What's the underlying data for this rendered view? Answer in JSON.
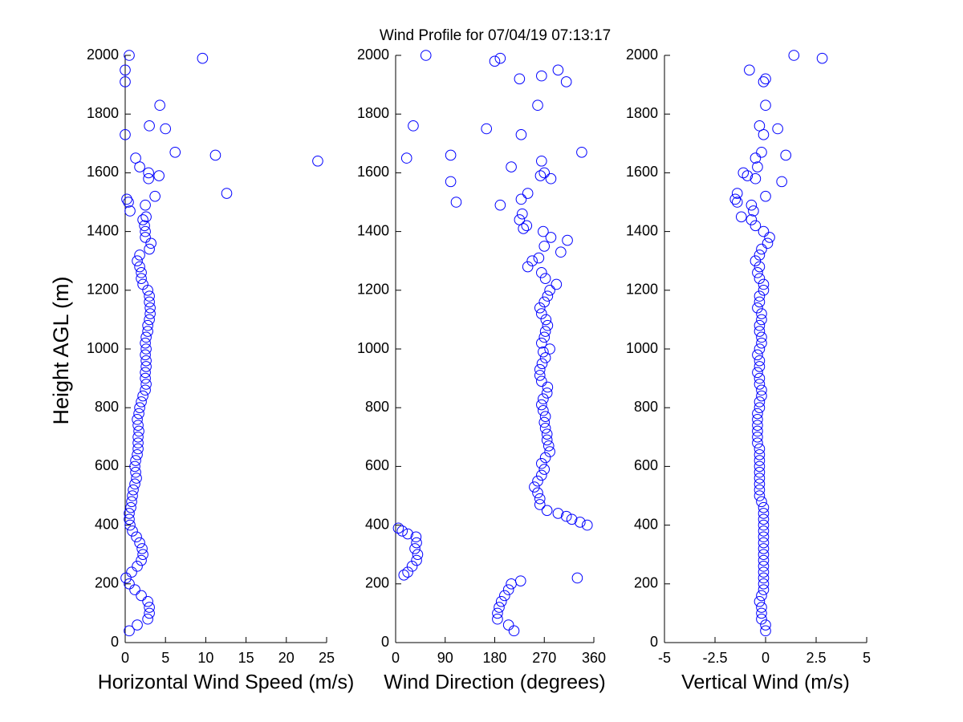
{
  "chart_data": [
    {
      "type": "scatter",
      "title": "Wind Profile for  07/04/19 07:13:17",
      "xlabel": "Horizontal Wind Speed (m/s)",
      "ylabel": "Height AGL (m)",
      "color": "#0000ff",
      "xlim": [
        0,
        25
      ],
      "xticks": [
        0,
        5,
        10,
        15,
        20,
        25
      ],
      "ylim": [
        0,
        2000
      ],
      "yticks": [
        0,
        200,
        400,
        600,
        800,
        1000,
        1200,
        1400,
        1600,
        1800,
        2000
      ],
      "x": [
        0.5,
        1.5,
        2.8,
        3.0,
        3.0,
        2.8,
        2.0,
        1.2,
        0.5,
        0.1,
        0.8,
        1.5,
        2.0,
        2.2,
        2.1,
        1.8,
        1.4,
        0.9,
        0.6,
        0.5,
        0.5,
        0.7,
        0.8,
        0.9,
        1.0,
        1.2,
        1.4,
        1.3,
        1.2,
        1.3,
        1.5,
        1.6,
        1.6,
        1.6,
        1.7,
        1.6,
        1.5,
        1.7,
        1.8,
        2.0,
        2.2,
        2.5,
        2.6,
        2.5,
        2.5,
        2.6,
        2.6,
        2.5,
        2.6,
        2.5,
        2.6,
        2.8,
        2.8,
        3.0,
        3.1,
        3.1,
        3.0,
        3.0,
        2.8,
        2.2,
        2.0,
        2.0,
        1.8,
        1.5,
        1.8,
        3.0,
        3.2,
        2.5,
        2.5,
        2.4,
        2.2,
        2.6,
        0.6,
        2.5,
        0.4,
        0.2,
        3.7,
        12.6,
        2.9,
        4.2,
        2.9,
        1.8,
        23.9,
        1.3,
        11.2,
        6.2,
        0,
        5.0,
        3.0,
        4.3,
        0,
        0,
        9.6,
        0.5
      ],
      "values": [
        40,
        60,
        80,
        100,
        120,
        140,
        160,
        180,
        200,
        220,
        240,
        260,
        280,
        300,
        320,
        340,
        360,
        380,
        400,
        420,
        440,
        460,
        480,
        500,
        520,
        540,
        560,
        580,
        600,
        620,
        640,
        660,
        680,
        700,
        720,
        740,
        760,
        780,
        800,
        820,
        840,
        860,
        880,
        900,
        920,
        940,
        960,
        980,
        1000,
        1020,
        1040,
        1060,
        1080,
        1100,
        1120,
        1140,
        1160,
        1180,
        1200,
        1220,
        1240,
        1260,
        1280,
        1300,
        1320,
        1340,
        1360,
        1380,
        1400,
        1420,
        1440,
        1450,
        1470,
        1490,
        1500,
        1510,
        1520,
        1530,
        1580,
        1590,
        1600,
        1620,
        1640,
        1650,
        1660,
        1670,
        1730,
        1750,
        1760,
        1830,
        1910,
        1950,
        1990,
        2000
      ]
    },
    {
      "type": "scatter",
      "xlabel": "Wind Direction (degrees)",
      "color": "#0000ff",
      "xlim": [
        0,
        360
      ],
      "xticks": [
        0,
        90,
        180,
        270,
        360
      ],
      "ylim": [
        0,
        2000
      ],
      "yticks": [
        0,
        200,
        400,
        600,
        800,
        1000,
        1200,
        1400,
        1600,
        1800,
        2000
      ],
      "x": [
        215,
        205,
        185,
        185,
        188,
        192,
        198,
        205,
        210,
        227,
        330,
        15,
        22,
        30,
        38,
        40,
        35,
        38,
        37,
        22,
        12,
        5,
        348,
        335,
        320,
        310,
        295,
        275,
        262,
        262,
        258,
        252,
        258,
        265,
        270,
        265,
        272,
        280,
        278,
        275,
        275,
        272,
        270,
        272,
        268,
        265,
        268,
        275,
        276,
        265,
        262,
        262,
        266,
        272,
        268,
        280,
        265,
        270,
        272,
        276,
        273,
        265,
        262,
        270,
        276,
        280,
        292,
        272,
        265,
        240,
        248,
        260,
        300,
        270,
        312,
        282,
        268,
        232,
        238,
        225,
        230,
        190,
        110,
        228,
        240,
        100,
        282,
        263,
        270,
        210,
        265,
        20,
        100,
        338,
        228,
        165,
        32,
        258,
        310,
        225,
        265,
        295,
        180,
        190,
        55
      ],
      "values": [
        40,
        60,
        80,
        100,
        120,
        140,
        160,
        180,
        200,
        210,
        220,
        230,
        240,
        260,
        280,
        300,
        320,
        340,
        360,
        370,
        380,
        390,
        400,
        410,
        420,
        430,
        440,
        450,
        470,
        490,
        510,
        530,
        550,
        570,
        590,
        610,
        630,
        650,
        670,
        690,
        710,
        730,
        750,
        770,
        790,
        810,
        830,
        850,
        870,
        890,
        910,
        930,
        950,
        970,
        990,
        1000,
        1020,
        1040,
        1060,
        1080,
        1100,
        1120,
        1140,
        1160,
        1180,
        1200,
        1220,
        1240,
        1260,
        1280,
        1300,
        1310,
        1330,
        1350,
        1370,
        1380,
        1400,
        1410,
        1420,
        1440,
        1460,
        1490,
        1500,
        1510,
        1530,
        1570,
        1580,
        1590,
        1600,
        1620,
        1640,
        1650,
        1660,
        1670,
        1730,
        1750,
        1760,
        1830,
        1910,
        1920,
        1930,
        1950,
        1980,
        1990,
        2000
      ]
    },
    {
      "type": "scatter",
      "xlabel": "Vertical Wind (m/s)",
      "color": "#0000ff",
      "xlim": [
        -5,
        5
      ],
      "xticks": [
        -5,
        -2.5,
        0,
        2.5,
        5
      ],
      "ylim": [
        0,
        2000
      ],
      "yticks": [
        0,
        200,
        400,
        600,
        800,
        1000,
        1200,
        1400,
        1600,
        1800,
        2000
      ],
      "x": [
        0.0,
        0.0,
        -0.2,
        -0.2,
        -0.2,
        -0.3,
        -0.2,
        -0.1,
        -0.1,
        -0.1,
        -0.1,
        -0.1,
        -0.1,
        -0.1,
        -0.1,
        -0.1,
        -0.1,
        -0.1,
        -0.1,
        -0.1,
        -0.1,
        -0.1,
        -0.2,
        -0.3,
        -0.3,
        -0.3,
        -0.3,
        -0.3,
        -0.3,
        -0.3,
        -0.3,
        -0.3,
        -0.4,
        -0.4,
        -0.4,
        -0.4,
        -0.4,
        -0.4,
        -0.3,
        -0.3,
        -0.2,
        -0.2,
        -0.3,
        -0.3,
        -0.4,
        -0.3,
        -0.3,
        -0.4,
        -0.3,
        -0.2,
        -0.2,
        -0.3,
        -0.3,
        -0.2,
        -0.2,
        -0.4,
        -0.3,
        -0.3,
        -0.1,
        -0.1,
        -0.3,
        -0.4,
        -0.3,
        -0.5,
        -0.3,
        -0.2,
        0.1,
        0.2,
        -0.1,
        -0.5,
        -0.7,
        -1.2,
        -0.6,
        -0.7,
        -1.4,
        -1.5,
        0,
        -1.4,
        0.8,
        -0.5,
        -0.9,
        -1.1,
        -0.4,
        -0.5,
        1.0,
        -0.2,
        -0.1,
        0.6,
        -0.3,
        0,
        -0.1,
        0,
        -0.8,
        2.8,
        1.4
      ],
      "values": [
        40,
        60,
        80,
        100,
        120,
        140,
        160,
        180,
        200,
        220,
        240,
        260,
        280,
        300,
        320,
        340,
        360,
        380,
        400,
        420,
        440,
        460,
        480,
        500,
        520,
        540,
        560,
        580,
        600,
        620,
        640,
        660,
        680,
        700,
        720,
        740,
        760,
        780,
        800,
        820,
        840,
        860,
        880,
        900,
        920,
        940,
        960,
        980,
        1000,
        1020,
        1040,
        1060,
        1080,
        1100,
        1120,
        1140,
        1160,
        1180,
        1200,
        1220,
        1240,
        1260,
        1280,
        1300,
        1320,
        1340,
        1360,
        1380,
        1400,
        1420,
        1440,
        1450,
        1470,
        1490,
        1500,
        1510,
        1520,
        1530,
        1570,
        1580,
        1590,
        1600,
        1620,
        1650,
        1660,
        1670,
        1730,
        1750,
        1760,
        1830,
        1910,
        1920,
        1950,
        1990,
        2000
      ]
    }
  ]
}
